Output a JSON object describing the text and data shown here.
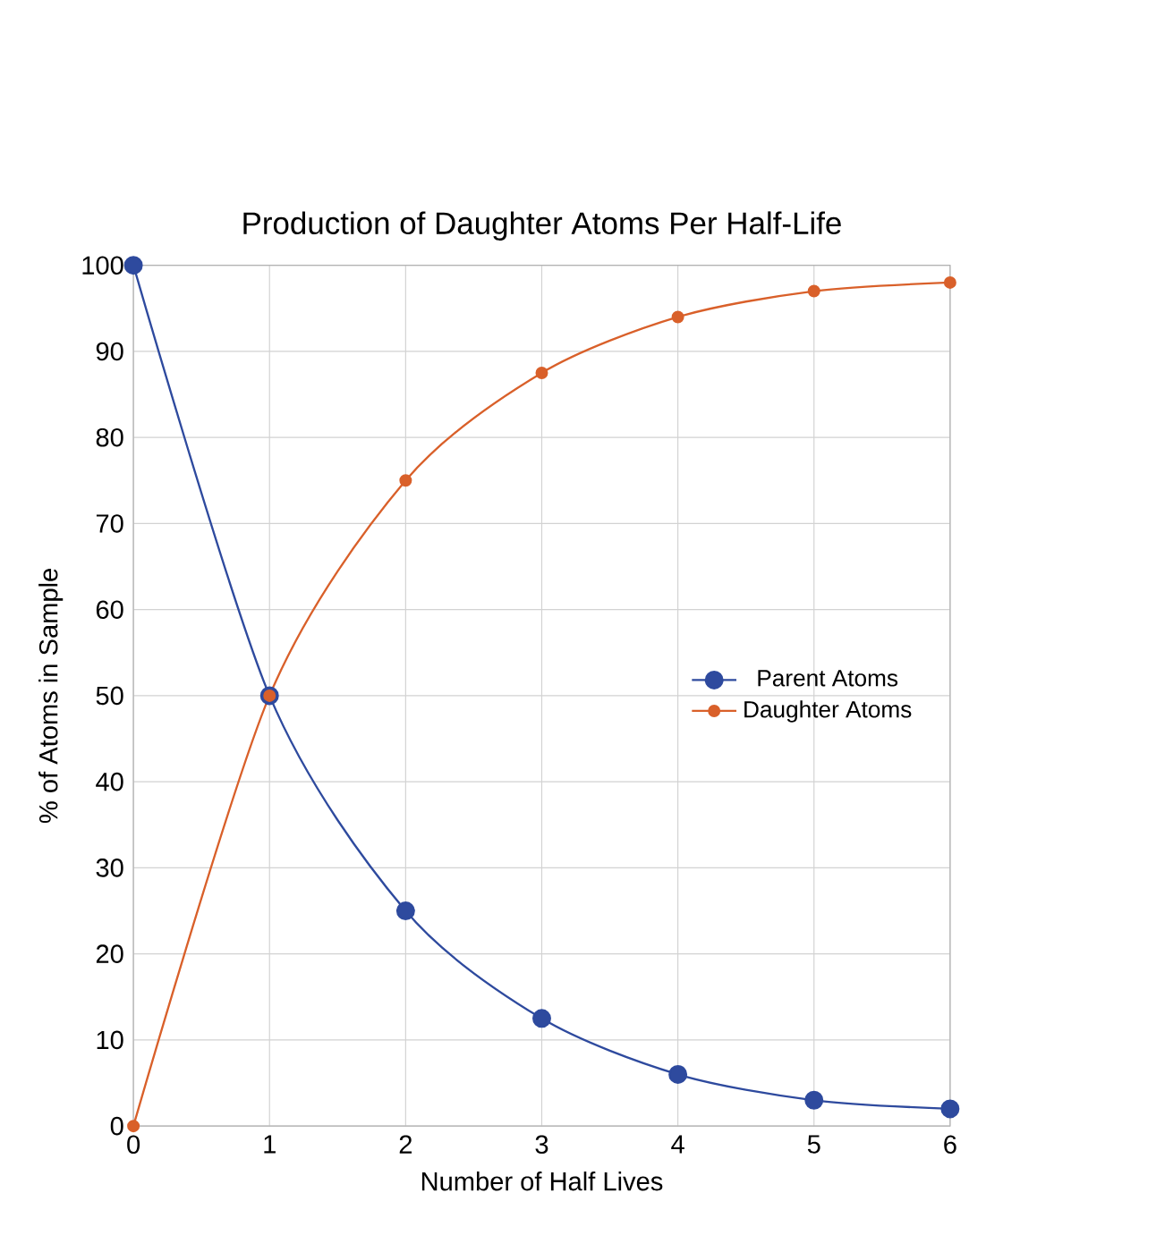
{
  "chart_data": {
    "type": "line",
    "title": "Production of Daughter Atoms Per Half-Life",
    "xlabel": "Number of Half Lives",
    "ylabel": "% of Atoms in Sample",
    "x": [
      0,
      1,
      2,
      3,
      4,
      5,
      6
    ],
    "series": [
      {
        "name": "Parent Atoms",
        "color": "#2e4a9e",
        "values": [
          100,
          50,
          25,
          12.5,
          6,
          3,
          2
        ]
      },
      {
        "name": "Daughter Atoms",
        "color": "#d9602a",
        "values": [
          0,
          50,
          75,
          87.5,
          94,
          97,
          98
        ]
      }
    ],
    "xlim": [
      0,
      6
    ],
    "ylim": [
      0,
      100
    ],
    "xticks": [
      0,
      1,
      2,
      3,
      4,
      5,
      6
    ],
    "yticks": [
      0,
      10,
      20,
      30,
      40,
      50,
      60,
      70,
      80,
      90,
      100
    ],
    "grid": true,
    "legend": "right",
    "marker": "circle",
    "line_style": "solid"
  }
}
